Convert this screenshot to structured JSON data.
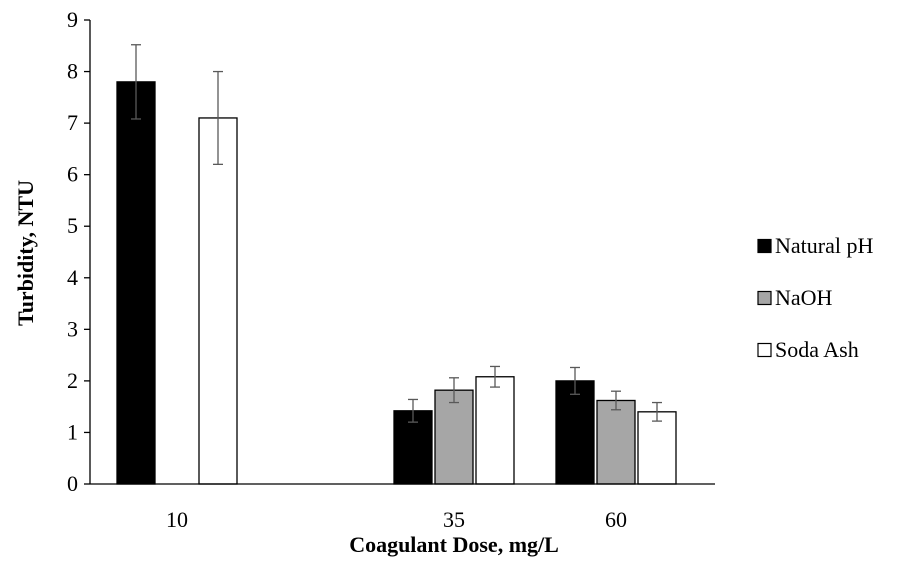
{
  "chart_data": {
    "type": "bar",
    "title": "",
    "xlabel": "Coagulant Dose, mg/L",
    "ylabel": "Turbidity, NTU",
    "categories": [
      "10",
      "35",
      "60"
    ],
    "ylim": [
      0,
      9
    ],
    "yticks": [
      0,
      1,
      2,
      3,
      4,
      5,
      6,
      7,
      8,
      9
    ],
    "grid": false,
    "legend": "right",
    "series": [
      {
        "name": "Natural pH",
        "color": "#000000",
        "values": [
          7.8,
          1.42,
          2.0
        ],
        "errors": [
          0.72,
          0.22,
          0.26
        ]
      },
      {
        "name": "NaOH",
        "color": "#a6a6a6",
        "values": [
          null,
          1.82,
          1.62
        ],
        "errors": [
          null,
          0.24,
          0.18
        ]
      },
      {
        "name": "Soda Ash",
        "color": "#ffffff",
        "values": [
          7.1,
          2.08,
          1.4
        ],
        "errors": [
          0.9,
          0.2,
          0.18
        ]
      }
    ]
  }
}
